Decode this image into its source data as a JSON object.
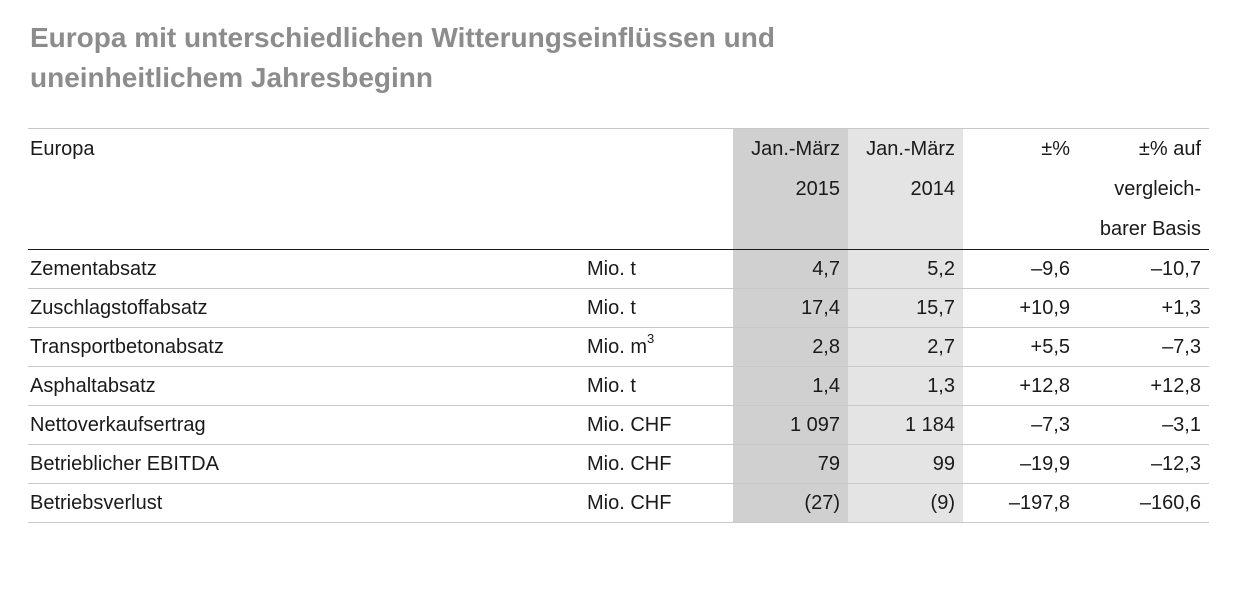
{
  "title": {
    "line1": "Europa mit unterschiedlichen Witterungseinflüssen und",
    "line2": "uneinheitlichem Jahresbeginn"
  },
  "table": {
    "header": {
      "region": "Europa",
      "col_2015_line1": "Jan.-März",
      "col_2015_line2": "2015",
      "col_2014_line1": "Jan.-März",
      "col_2014_line2": "2014",
      "col_pct": "±%",
      "col_pct_basis_line1": "±% auf",
      "col_pct_basis_line2": "vergleich-",
      "col_pct_basis_line3": "barer Basis"
    },
    "rows": [
      {
        "label": "Zementabsatz",
        "unit": "Mio. t",
        "unit_sup": "",
        "v2015": "4,7",
        "v2014": "5,2",
        "pct": "–9,6",
        "pct_basis": "–10,7"
      },
      {
        "label": "Zuschlagstoffabsatz",
        "unit": "Mio. t",
        "unit_sup": "",
        "v2015": "17,4",
        "v2014": "15,7",
        "pct": "+10,9",
        "pct_basis": "+1,3"
      },
      {
        "label": "Transportbetonabsatz",
        "unit": "Mio. m",
        "unit_sup": "3",
        "v2015": "2,8",
        "v2014": "2,7",
        "pct": "+5,5",
        "pct_basis": "–7,3"
      },
      {
        "label": "Asphaltabsatz",
        "unit": "Mio. t",
        "unit_sup": "",
        "v2015": "1,4",
        "v2014": "1,3",
        "pct": "+12,8",
        "pct_basis": "+12,8"
      },
      {
        "label": "Nettoverkaufsertrag",
        "unit": "Mio. CHF",
        "unit_sup": "",
        "v2015": "1 097",
        "v2014": "1 184",
        "pct": "–7,3",
        "pct_basis": "–3,1"
      },
      {
        "label": "Betrieblicher EBITDA",
        "unit": "Mio. CHF",
        "unit_sup": "",
        "v2015": "79",
        "v2014": "99",
        "pct": "–19,9",
        "pct_basis": "–12,3"
      },
      {
        "label": "Betriebsverlust",
        "unit": "Mio. CHF",
        "unit_sup": "",
        "v2015": "(27)",
        "v2014": "(9)",
        "pct": "–197,8",
        "pct_basis": "–160,6"
      }
    ]
  },
  "colors": {
    "title": "#8c8c8c",
    "shade_2015": "#d0d0d0",
    "shade_2014": "#e4e4e4",
    "rule": "#c8c8c8"
  }
}
